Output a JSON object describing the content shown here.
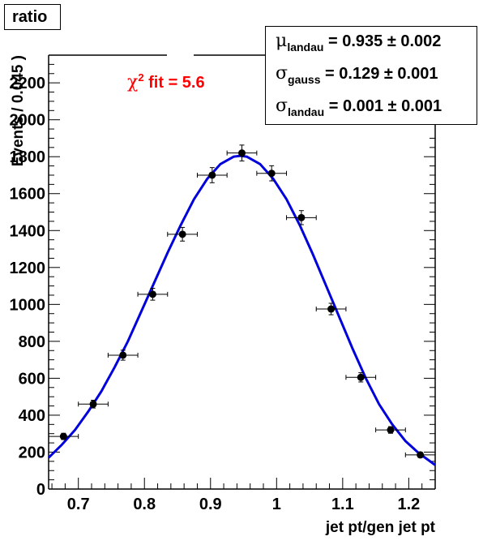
{
  "title_box": {
    "text": "ratio"
  },
  "chi2_label": {
    "prefix": "χ",
    "exp": "2",
    "text": " fit = 5.6"
  },
  "stats": [
    {
      "symbol": "μ",
      "sub": "landau",
      "text": " =  0.935 ± 0.002"
    },
    {
      "symbol": "σ",
      "sub": "gauss",
      "text": " =  0.129 ± 0.001"
    },
    {
      "symbol": "σ",
      "sub": "landau",
      "text": " =  0.001 ± 0.001"
    }
  ],
  "colors": {
    "fit": "#0000dd",
    "points": "#000000",
    "chi2": "#ff0000"
  },
  "chart_data": {
    "type": "scatter",
    "xlabel": "jet pt/gen jet pt",
    "ylabel": "Events / 0.045 )",
    "xlim": [
      0.655,
      1.24
    ],
    "ylim": [
      0,
      2350
    ],
    "x_ticks": [
      0.7,
      0.8,
      0.9,
      1,
      1.1,
      1.2
    ],
    "x_tick_labels": [
      "0.7",
      "0.8",
      "0.9",
      "1",
      "1.1",
      "1.2"
    ],
    "y_ticks": [
      0,
      200,
      400,
      600,
      800,
      1000,
      1200,
      1400,
      1600,
      1800,
      2000,
      2200
    ],
    "y_tick_labels": [
      "0",
      "200",
      "400",
      "600",
      "800",
      "1000",
      "1200",
      "1400",
      "1600",
      "1800",
      "2000",
      "2200"
    ],
    "bin_half_width": 0.0225,
    "points": [
      {
        "x": 0.6775,
        "y": 285,
        "err": 17
      },
      {
        "x": 0.7225,
        "y": 460,
        "err": 21
      },
      {
        "x": 0.7675,
        "y": 725,
        "err": 27
      },
      {
        "x": 0.8125,
        "y": 1055,
        "err": 32
      },
      {
        "x": 0.8575,
        "y": 1380,
        "err": 37
      },
      {
        "x": 0.9025,
        "y": 1700,
        "err": 41
      },
      {
        "x": 0.9475,
        "y": 1820,
        "err": 43
      },
      {
        "x": 0.9925,
        "y": 1710,
        "err": 41
      },
      {
        "x": 1.0375,
        "y": 1470,
        "err": 38
      },
      {
        "x": 1.0825,
        "y": 975,
        "err": 31
      },
      {
        "x": 1.1275,
        "y": 605,
        "err": 25
      },
      {
        "x": 1.1725,
        "y": 320,
        "err": 18
      },
      {
        "x": 1.2175,
        "y": 185,
        "err": 14
      }
    ],
    "fit_curve": [
      [
        0.655,
        170
      ],
      [
        0.675,
        240
      ],
      [
        0.695,
        320
      ],
      [
        0.715,
        420
      ],
      [
        0.735,
        530
      ],
      [
        0.755,
        660
      ],
      [
        0.775,
        800
      ],
      [
        0.795,
        960
      ],
      [
        0.815,
        1120
      ],
      [
        0.835,
        1280
      ],
      [
        0.855,
        1430
      ],
      [
        0.875,
        1570
      ],
      [
        0.895,
        1680
      ],
      [
        0.915,
        1760
      ],
      [
        0.935,
        1800
      ],
      [
        0.945,
        1805
      ],
      [
        0.955,
        1800
      ],
      [
        0.975,
        1760
      ],
      [
        0.995,
        1680
      ],
      [
        1.015,
        1570
      ],
      [
        1.035,
        1430
      ],
      [
        1.055,
        1270
      ],
      [
        1.075,
        1100
      ],
      [
        1.095,
        930
      ],
      [
        1.115,
        760
      ],
      [
        1.135,
        600
      ],
      [
        1.155,
        460
      ],
      [
        1.175,
        350
      ],
      [
        1.195,
        260
      ],
      [
        1.215,
        195
      ],
      [
        1.24,
        130
      ]
    ]
  }
}
